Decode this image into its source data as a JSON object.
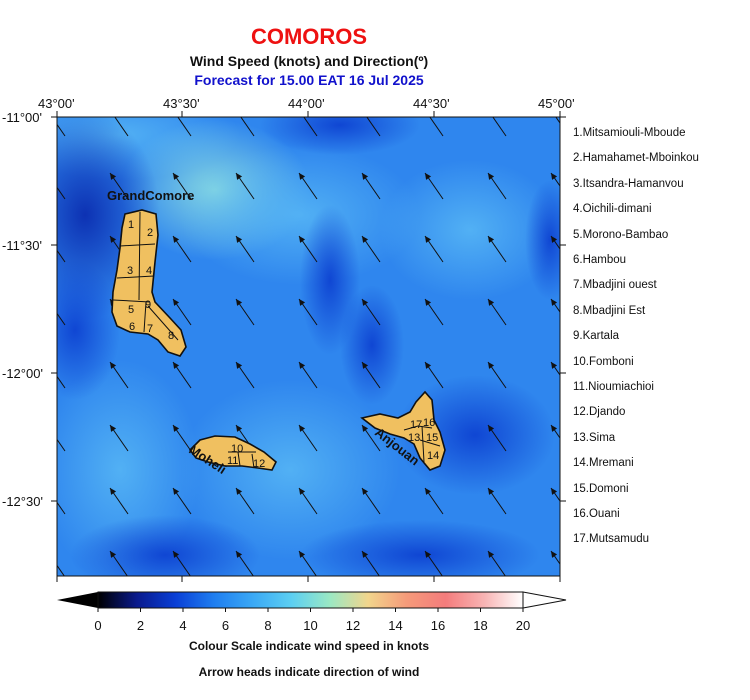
{
  "header": {
    "country": "COMOROS",
    "subtitle": "Wind Speed (knots) and Direction(º)",
    "forecast": "Forecast for  15.00 EAT 16 Jul 2025"
  },
  "axes": {
    "lon_labels": [
      "43°00'",
      "43°30'",
      "44°00'",
      "44°30'",
      "45°00'"
    ],
    "lat_labels": [
      "-11°00'",
      "-11°30'",
      "-12°00'",
      "-12°30'"
    ]
  },
  "islands": {
    "grand_comore": "GrandComore",
    "moheli": "Moheli",
    "anjouan": "Anjouan",
    "fill_color": "#f0c060"
  },
  "districts": [
    "1.Mitsamiouli-Mboude",
    "2.Hamahamet-Mboinkou",
    "3.Itsandra-Hamanvou",
    "4.Oichili-dimani",
    "5.Morono-Bambao",
    "6.Hambou",
    "7.Mbadjini ouest",
    "8.Mbadjini Est",
    "9.Kartala",
    "10.Fomboni",
    "11.Nioumiachioi",
    "12.Djando",
    "13.Sima",
    "14.Mremani",
    "15.Domoni",
    "16.Ouani",
    "17.Mutsamudu"
  ],
  "district_marks": {
    "grand_comore": [
      "1",
      "2",
      "3",
      "4",
      "5",
      "6",
      "7",
      "8",
      "9"
    ],
    "moheli": [
      "10",
      "11",
      "12"
    ],
    "anjouan": [
      "13",
      "14",
      "15",
      "16",
      "17"
    ]
  },
  "colorbar": {
    "ticks": [
      "0",
      "2",
      "4",
      "6",
      "8",
      "10",
      "12",
      "14",
      "16",
      "18",
      "20"
    ],
    "unit": "knots",
    "colors": [
      "#000000",
      "#0a1a8c",
      "#0a3fd6",
      "#1f7ef0",
      "#3aa8f5",
      "#5ccff2",
      "#9ae8c4",
      "#f2d58c",
      "#f59a7a",
      "#f47c7c",
      "#f8b4b4",
      "#ffffff"
    ]
  },
  "notes": {
    "scale": "Colour Scale indicate wind speed in knots",
    "arrows": "Arrow heads indicate direction of wind"
  }
}
